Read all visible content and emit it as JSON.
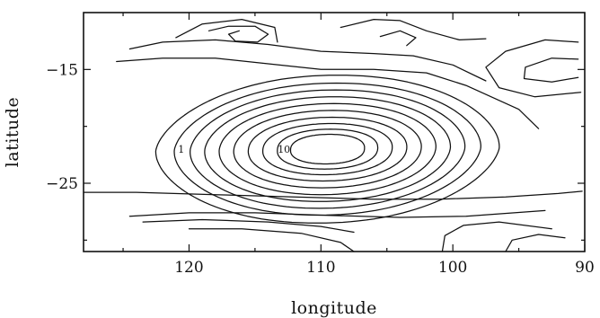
{
  "chart_data": {
    "type": "contour",
    "title": "",
    "xlabel": "longitude",
    "ylabel": "latitude",
    "xlim": [
      128,
      90
    ],
    "ylim": [
      -31,
      -10
    ],
    "x_ticks": [
      120,
      110,
      100,
      90
    ],
    "y_ticks": [
      -15,
      -25
    ],
    "x_tick_labels": [
      "120",
      "110",
      "100",
      "90"
    ],
    "y_tick_labels": [
      "−15",
      "−25"
    ],
    "grid": false,
    "legend": "none",
    "center": {
      "x": 109.5,
      "y": -22.0
    },
    "contour_levels": [
      1,
      2,
      3,
      4,
      5,
      6,
      7,
      8,
      9,
      10
    ],
    "contour_labels": [
      {
        "text": "1",
        "x": 120.6,
        "y": -22.0
      },
      {
        "text": "10",
        "x": 112.8,
        "y": -22.0
      }
    ],
    "line_color": "#111111"
  }
}
